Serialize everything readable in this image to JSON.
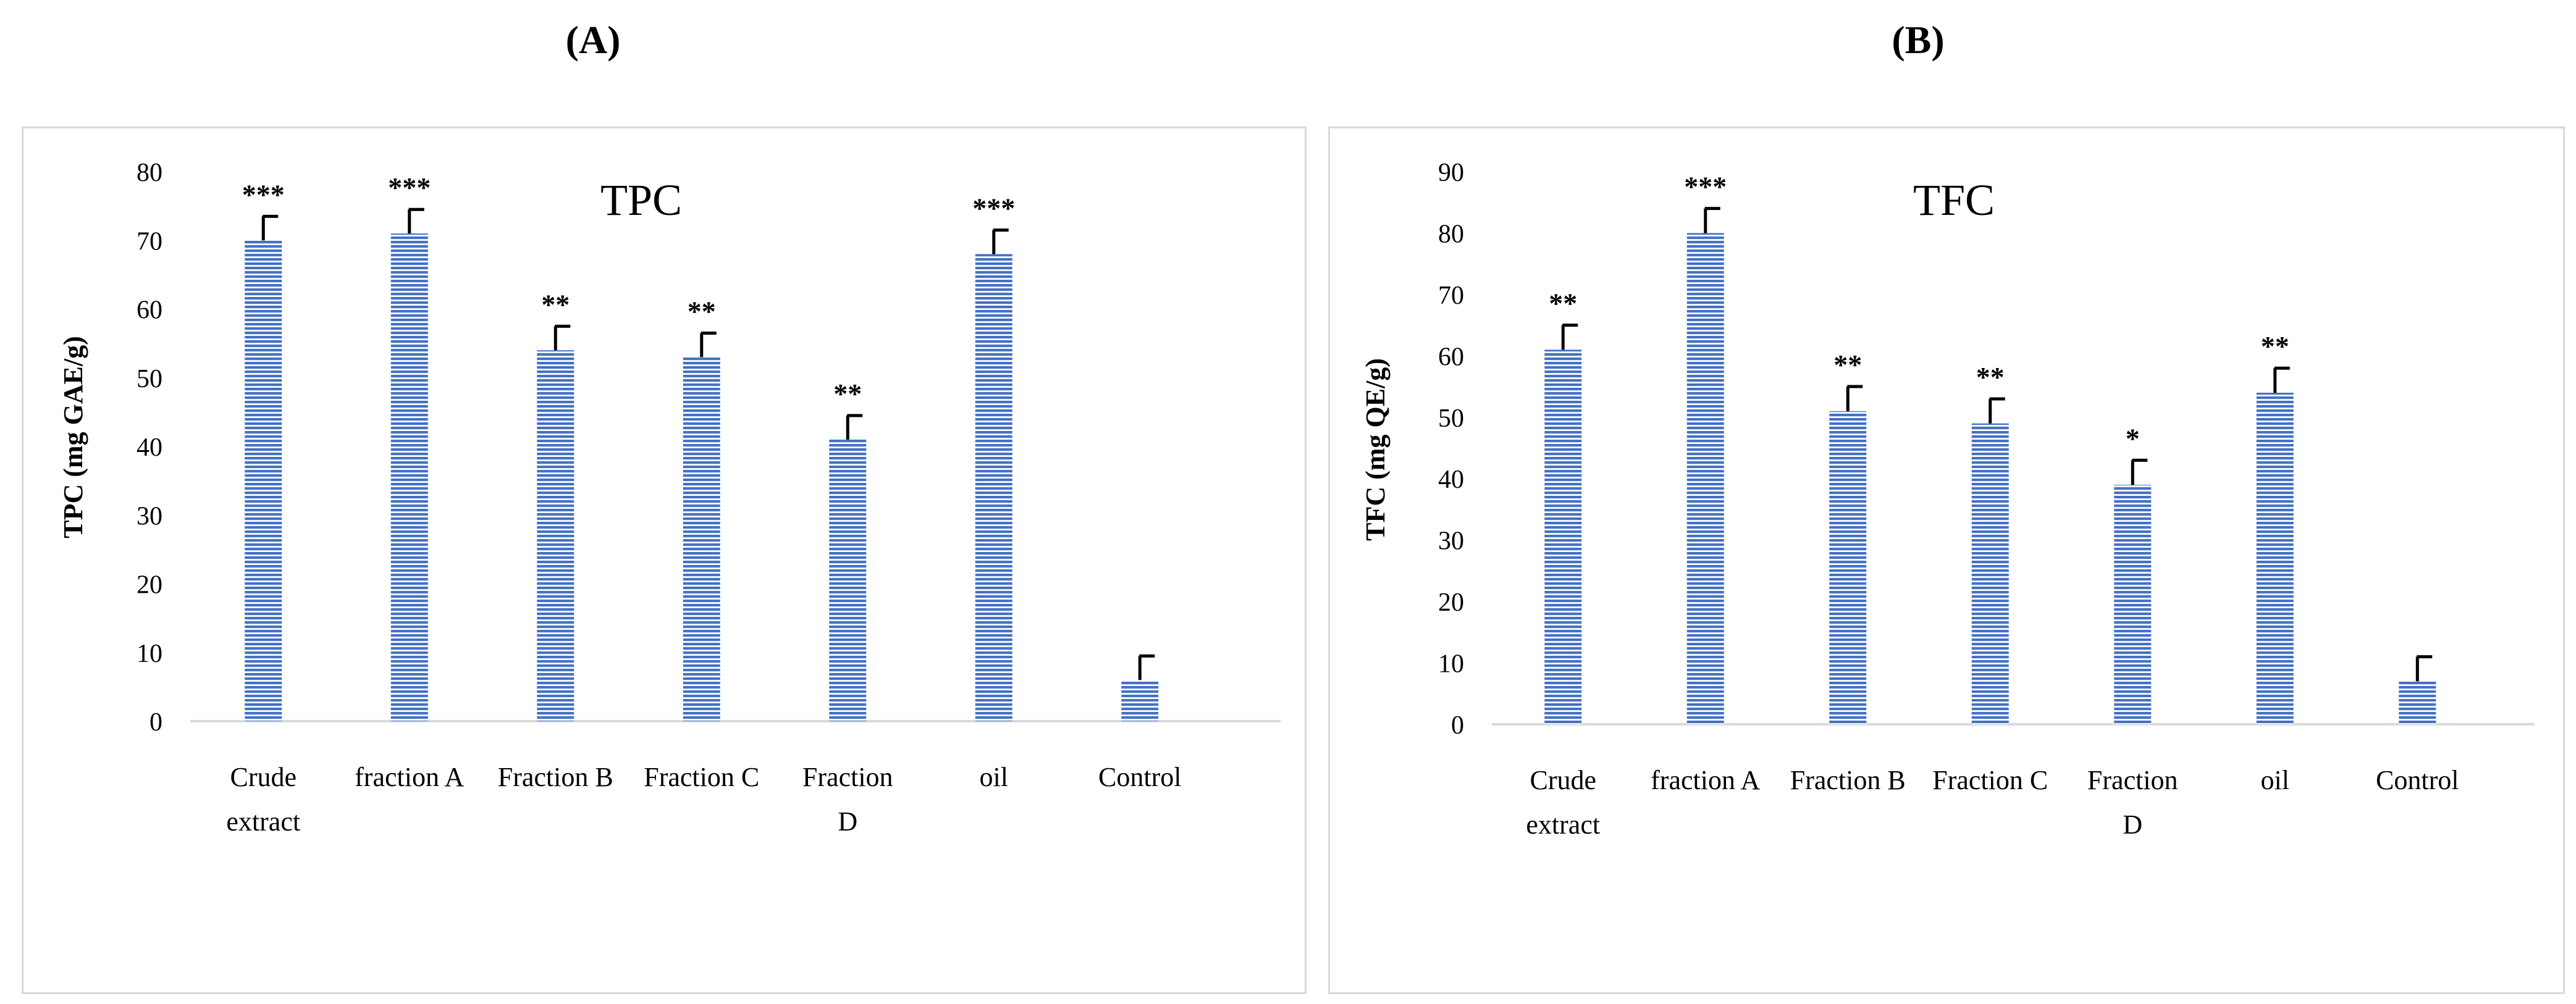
{
  "figure": {
    "label_a": "(A)",
    "label_b": "(B)"
  },
  "colors": {
    "bar": "#4472c4",
    "bar_stripe": "#ffffff",
    "error_bar": "#000000",
    "axis": "#d9d9d9",
    "text": "#000000"
  },
  "chart_data": [
    {
      "type": "bar",
      "title": "TPC",
      "ylabel": "TPC  (mg GAE/g)",
      "xlabel": "",
      "ylim": [
        0,
        80
      ],
      "ytick_step": 10,
      "grid": false,
      "legend": "none",
      "categories": [
        [
          "Crude",
          "extract"
        ],
        [
          "fraction A"
        ],
        [
          "Fraction B"
        ],
        [
          "Fraction C"
        ],
        [
          "Fraction",
          "D"
        ],
        [
          "oil"
        ],
        [
          "Control"
        ]
      ],
      "values": [
        70,
        71,
        54,
        53,
        41,
        68,
        6
      ],
      "errors": [
        3.5,
        3.5,
        3.5,
        3.5,
        3.5,
        3.5,
        3.5
      ],
      "significance": [
        "***",
        "***",
        "**",
        "**",
        "**",
        "***",
        ""
      ]
    },
    {
      "type": "bar",
      "title": "TFC",
      "ylabel": "TFC (mg QE/g)",
      "xlabel": "",
      "ylim": [
        0,
        90
      ],
      "ytick_step": 10,
      "grid": false,
      "legend": "none",
      "categories": [
        [
          "Crude",
          "extract"
        ],
        [
          "fraction A"
        ],
        [
          "Fraction B"
        ],
        [
          "Fraction C"
        ],
        [
          "Fraction",
          "D"
        ],
        [
          "oil"
        ],
        [
          "Control"
        ]
      ],
      "values": [
        61,
        80,
        51,
        49,
        39,
        54,
        7
      ],
      "errors": [
        4,
        4,
        4,
        4,
        4,
        4,
        4
      ],
      "significance": [
        "**",
        "***",
        "**",
        "**",
        "*",
        "**",
        ""
      ]
    }
  ]
}
